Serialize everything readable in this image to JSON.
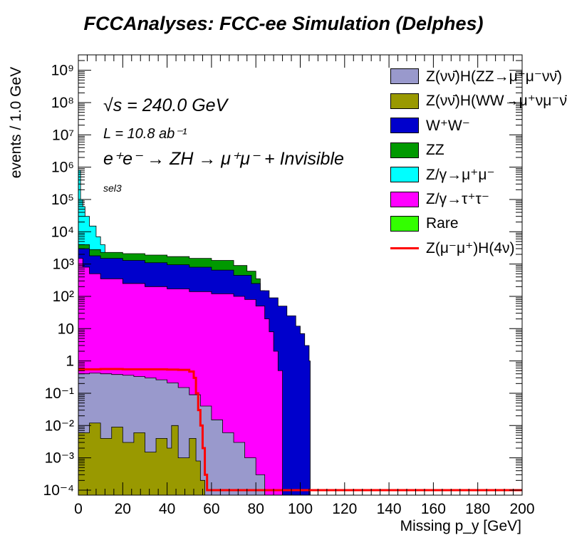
{
  "title": "FCCAnalyses: FCC-ee Simulation (Delphes)",
  "annotations": {
    "energy": "√s = 240.0 GeV",
    "lumi": "L = 10.8 ab⁻¹",
    "process": "e⁺e⁻ → ZH → μ⁺μ⁻ + Invisible",
    "selection": "sel3"
  },
  "chart_data": {
    "type": "area",
    "stacked": true,
    "xlabel": "Missing p_y [GeV]",
    "ylabel": "events / 1.0 GeV",
    "xlim": [
      0,
      200
    ],
    "ylim": [
      7e-05,
      3000000000
    ],
    "log_y": true,
    "legend_position": "top-right",
    "x_ticks": [
      0,
      20,
      40,
      60,
      80,
      100,
      120,
      140,
      160,
      180,
      200
    ],
    "y_ticks": [
      {
        "value": 0.0001,
        "label": "10⁻⁴"
      },
      {
        "value": 0.001,
        "label": "10⁻³"
      },
      {
        "value": 0.01,
        "label": "10⁻²"
      },
      {
        "value": 0.1,
        "label": "10⁻¹"
      },
      {
        "value": 1,
        "label": "1"
      },
      {
        "value": 10,
        "label": "10"
      },
      {
        "value": 100,
        "label": "10²"
      },
      {
        "value": 1000,
        "label": "10³"
      },
      {
        "value": 10000,
        "label": "10⁴"
      },
      {
        "value": 100000,
        "label": "10⁵"
      },
      {
        "value": 1000000,
        "label": "10⁶"
      },
      {
        "value": 10000000,
        "label": "10⁷"
      },
      {
        "value": 100000000,
        "label": "10⁸"
      },
      {
        "value": 1000000000,
        "label": "10⁹"
      }
    ],
    "series": [
      {
        "name": "Z(νν̄)H(WW→μ⁺νμ⁻ν̄)",
        "color": "#999900",
        "points": [
          [
            0,
            0.006
          ],
          [
            5,
            0.012
          ],
          [
            10,
            0.004
          ],
          [
            15,
            0.009
          ],
          [
            20,
            0.003
          ],
          [
            25,
            0.006
          ],
          [
            30,
            0.0015
          ],
          [
            35,
            0.004
          ],
          [
            40,
            0.002
          ],
          [
            42,
            0.01
          ],
          [
            45,
            0.001
          ],
          [
            50,
            0.004
          ],
          [
            53,
            0.0008
          ],
          [
            55,
            0.0002
          ],
          [
            57,
            0.0001
          ]
        ]
      },
      {
        "name": "Z(νν̄)H(ZZ→μ⁺μ⁻νν̄)",
        "color": "#9999cc",
        "points": [
          [
            0,
            0.4
          ],
          [
            5,
            0.42
          ],
          [
            10,
            0.4
          ],
          [
            15,
            0.38
          ],
          [
            20,
            0.36
          ],
          [
            25,
            0.33
          ],
          [
            30,
            0.3
          ],
          [
            35,
            0.26
          ],
          [
            40,
            0.21
          ],
          [
            45,
            0.15
          ],
          [
            50,
            0.09
          ],
          [
            55,
            0.04
          ],
          [
            60,
            0.015
          ],
          [
            65,
            0.006
          ],
          [
            70,
            0.003
          ],
          [
            75,
            0.001
          ],
          [
            80,
            0.0003
          ],
          [
            84,
            0.0001
          ]
        ]
      },
      {
        "name": "Z/γ→τ⁺τ⁻",
        "color": "#ff00ff",
        "points": [
          [
            0,
            1500
          ],
          [
            2,
            800
          ],
          [
            5,
            500
          ],
          [
            10,
            350
          ],
          [
            20,
            250
          ],
          [
            30,
            200
          ],
          [
            40,
            170
          ],
          [
            50,
            140
          ],
          [
            60,
            120
          ],
          [
            70,
            100
          ],
          [
            75,
            80
          ],
          [
            80,
            50
          ],
          [
            84,
            20
          ],
          [
            86,
            8
          ],
          [
            88,
            2
          ],
          [
            90,
            0.5
          ],
          [
            92,
            0.0001
          ]
        ]
      },
      {
        "name": "W⁺W⁻",
        "color": "#0000cc",
        "points": [
          [
            0,
            3000
          ],
          [
            5,
            1800
          ],
          [
            10,
            1500
          ],
          [
            20,
            1300
          ],
          [
            30,
            1100
          ],
          [
            40,
            950
          ],
          [
            50,
            800
          ],
          [
            60,
            650
          ],
          [
            70,
            450
          ],
          [
            78,
            250
          ],
          [
            82,
            150
          ],
          [
            86,
            90
          ],
          [
            90,
            50
          ],
          [
            94,
            25
          ],
          [
            98,
            12
          ],
          [
            100,
            7
          ],
          [
            102,
            3
          ],
          [
            104,
            1
          ],
          [
            104.5,
            0.0001
          ]
        ]
      },
      {
        "name": "ZZ",
        "color": "#009900",
        "points": [
          [
            0,
            4000
          ],
          [
            5,
            2800
          ],
          [
            10,
            2300
          ],
          [
            20,
            2100
          ],
          [
            30,
            1900
          ],
          [
            40,
            1700
          ],
          [
            50,
            1500
          ],
          [
            60,
            1300
          ],
          [
            70,
            900
          ],
          [
            76,
            600
          ],
          [
            80,
            350
          ],
          [
            82,
            150
          ],
          [
            84,
            90
          ]
        ]
      },
      {
        "name": "Z/γ→μ⁺μ⁻",
        "color": "#00ffff",
        "points": [
          [
            0,
            800000
          ],
          [
            1,
            100000
          ],
          [
            2,
            60000
          ],
          [
            3,
            30000
          ],
          [
            5,
            15000
          ],
          [
            8,
            7000
          ],
          [
            10,
            4000
          ],
          [
            12,
            3000
          ]
        ]
      },
      {
        "name": "Rare",
        "color": "#33ff00",
        "points": []
      },
      {
        "name": "Z(μ⁻μ⁺)H(4ν)",
        "color": "#ff0000",
        "line": true,
        "points": [
          [
            0,
            0.55
          ],
          [
            10,
            0.56
          ],
          [
            20,
            0.55
          ],
          [
            30,
            0.55
          ],
          [
            40,
            0.54
          ],
          [
            45,
            0.53
          ],
          [
            50,
            0.47
          ],
          [
            52,
            0.3
          ],
          [
            53,
            0.1
          ],
          [
            54,
            0.03
          ],
          [
            55,
            0.01
          ],
          [
            56,
            0.002
          ],
          [
            57,
            0.0003
          ],
          [
            58,
            0.0001
          ],
          [
            200,
            0.0001
          ]
        ]
      }
    ]
  }
}
